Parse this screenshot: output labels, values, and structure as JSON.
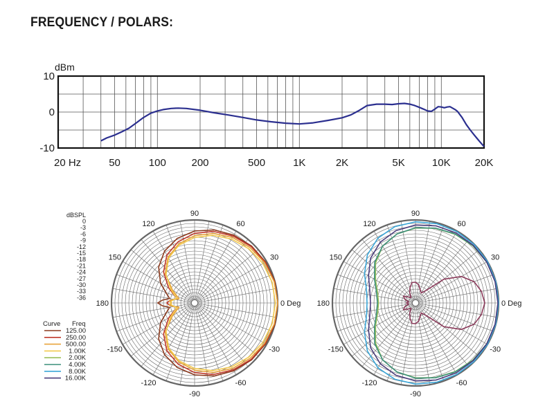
{
  "title": "FREQUENCY / POLARS:",
  "colors": {
    "freq_curve": "#2b2f8f",
    "grid": "#555555",
    "frame": "#111111"
  },
  "chart_data": [
    {
      "type": "line",
      "xlabel": "",
      "ylabel": "dBm",
      "xscale": "log",
      "xlim": [
        20,
        20000
      ],
      "ylim": [
        -10,
        10
      ],
      "x_ticks": [
        {
          "value": 20,
          "label": "20  Hz"
        },
        {
          "value": 50,
          "label": "50"
        },
        {
          "value": 100,
          "label": "100"
        },
        {
          "value": 200,
          "label": "200"
        },
        {
          "value": 500,
          "label": "500"
        },
        {
          "value": 1000,
          "label": "1K"
        },
        {
          "value": 2000,
          "label": "2K"
        },
        {
          "value": 5000,
          "label": "5K"
        },
        {
          "value": 10000,
          "label": "10K"
        },
        {
          "value": 20000,
          "label": "20K"
        }
      ],
      "y_ticks": [
        {
          "value": 10,
          "label": "10"
        },
        {
          "value": 0,
          "label": "0"
        },
        {
          "value": -10,
          "label": "-10"
        }
      ],
      "grid": true,
      "series": [
        {
          "name": "",
          "x": [
            40,
            44,
            50,
            56,
            63,
            70,
            80,
            90,
            100,
            110,
            125,
            140,
            160,
            200,
            250,
            315,
            400,
            500,
            630,
            800,
            1000,
            1250,
            1600,
            2000,
            2300,
            2600,
            3000,
            3500,
            4000,
            4500,
            5000,
            5500,
            6000,
            6500,
            7000,
            7500,
            8000,
            8500,
            9000,
            9500,
            10000,
            10500,
            11000,
            11500,
            12000,
            12500,
            13000,
            14000,
            15000,
            16000,
            17000,
            18000,
            19000,
            20000
          ],
          "y": [
            -8,
            -7.2,
            -6.4,
            -5.5,
            -4.5,
            -3.2,
            -1.5,
            -0.3,
            0.3,
            0.7,
            1.0,
            1.1,
            1.0,
            0.5,
            -0.2,
            -0.8,
            -1.5,
            -2.2,
            -2.7,
            -3.1,
            -3.3,
            -3.0,
            -2.3,
            -1.6,
            -0.8,
            0.3,
            1.8,
            2.2,
            2.2,
            2.1,
            2.3,
            2.4,
            2.2,
            1.8,
            1.3,
            0.8,
            0.3,
            0.2,
            0.8,
            1.5,
            1.4,
            1.2,
            1.4,
            1.5,
            1.1,
            0.7,
            0.2,
            -1.5,
            -3.5,
            -5.0,
            -6.3,
            -7.5,
            -8.6,
            -9.6
          ]
        }
      ]
    },
    {
      "type": "polar",
      "unit_label": "dBSPL",
      "r_ticks": [
        "0",
        "-3",
        "-6",
        "-9",
        "-12",
        "-15",
        "-18",
        "-21",
        "-24",
        "-27",
        "-30",
        "-33",
        "-36"
      ],
      "angle_labels": [
        {
          "deg": 0,
          "label": "0 Deg"
        },
        {
          "deg": 30,
          "label": "30"
        },
        {
          "deg": 60,
          "label": "60"
        },
        {
          "deg": 90,
          "label": "90"
        },
        {
          "deg": 120,
          "label": "120"
        },
        {
          "deg": 150,
          "label": "150"
        },
        {
          "deg": 180,
          "label": "180"
        },
        {
          "deg": -150,
          "label": "-150"
        },
        {
          "deg": -120,
          "label": "-120"
        },
        {
          "deg": -90,
          "label": "-90"
        },
        {
          "deg": -60,
          "label": "-60"
        },
        {
          "deg": -30,
          "label": "-30"
        }
      ],
      "legend": {
        "header_curve": "Curve",
        "header_freq": "Freq",
        "entries": [
          {
            "freq": "125.00",
            "color": "#8b3a1e"
          },
          {
            "freq": "250.00",
            "color": "#c0392b"
          },
          {
            "freq": "500.00",
            "color": "#e8a33a"
          },
          {
            "freq": "1.00K",
            "color": "#f2c94c"
          },
          {
            "freq": "2.00K",
            "color": "#9bbf5a"
          },
          {
            "freq": "4.00K",
            "color": "#3a8f7a"
          },
          {
            "freq": "8.00K",
            "color": "#3aa6d8"
          },
          {
            "freq": "16.00K",
            "color": "#4a3b7a"
          }
        ]
      },
      "series": [
        {
          "freq": "125.00",
          "color": "#8b3a1e",
          "angles": [
            0,
            15,
            30,
            45,
            60,
            75,
            90,
            105,
            120,
            135,
            150,
            165,
            170,
            175,
            180,
            -175,
            -170,
            -165,
            -150,
            -135,
            -120,
            -105,
            -90,
            -75,
            -60,
            -45,
            -30,
            -15
          ],
          "db": [
            0,
            0,
            -0.5,
            -1.1,
            -2.0,
            -3.2,
            -4.8,
            -7,
            -10,
            -14,
            -19,
            -24,
            -25,
            -22,
            -20,
            -22,
            -25,
            -24,
            -19,
            -14,
            -10,
            -7,
            -4.8,
            -3.2,
            -2,
            -1.1,
            -0.5,
            0
          ]
        },
        {
          "freq": "250.00",
          "color": "#c0392b",
          "angles": [
            0,
            15,
            30,
            45,
            60,
            75,
            90,
            105,
            120,
            135,
            150,
            165,
            170,
            175,
            180,
            -175,
            -170,
            -165,
            -150,
            -135,
            -120,
            -105,
            -90,
            -75,
            -60,
            -45,
            -30,
            -15
          ],
          "db": [
            0,
            -0.2,
            -0.7,
            -1.4,
            -2.5,
            -3.9,
            -5.8,
            -8.5,
            -12,
            -17,
            -23,
            -28,
            -27,
            -25,
            -24,
            -25,
            -27,
            -28,
            -23,
            -17,
            -12,
            -8.5,
            -5.8,
            -3.9,
            -2.5,
            -1.4,
            -0.7,
            -0.2
          ]
        },
        {
          "freq": "500.00",
          "color": "#e8a33a",
          "angles": [
            0,
            15,
            30,
            45,
            60,
            75,
            90,
            105,
            120,
            135,
            150,
            165,
            170,
            175,
            180,
            -175,
            -170,
            -165,
            -150,
            -135,
            -120,
            -105,
            -90,
            -75,
            -60,
            -45,
            -30,
            -15
          ],
          "db": [
            0,
            -0.3,
            -1.0,
            -2.0,
            -3.2,
            -4.8,
            -6.8,
            -9.5,
            -13,
            -18,
            -25,
            -29,
            -27,
            -25,
            -26,
            -25,
            -27,
            -29,
            -25,
            -18,
            -13,
            -9.5,
            -6.8,
            -4.8,
            -3.2,
            -2.0,
            -1.0,
            -0.3
          ]
        },
        {
          "freq": "1.00K",
          "color": "#f2c94c",
          "angles": [
            0,
            15,
            30,
            45,
            60,
            75,
            90,
            105,
            120,
            135,
            150,
            165,
            170,
            175,
            180,
            -175,
            -170,
            -165,
            -150,
            -135,
            -120,
            -105,
            -90,
            -75,
            -60,
            -45,
            -30,
            -15
          ],
          "db": [
            -1,
            -1.2,
            -1.8,
            -2.8,
            -4,
            -5.6,
            -7.6,
            -10,
            -13.5,
            -18.5,
            -24,
            -28,
            -27,
            -26,
            -25.5,
            -26,
            -27,
            -28,
            -24,
            -18.5,
            -13.5,
            -10,
            -7.6,
            -5.6,
            -4,
            -2.8,
            -1.8,
            -1.2
          ]
        },
        {
          "freq": "2.00K",
          "color": "#9bbf5a",
          "angles": [
            0,
            15,
            30,
            45,
            60,
            75,
            90,
            105,
            120,
            135,
            150,
            165,
            180,
            -165,
            -150,
            -135,
            -120,
            -105,
            -90,
            -75,
            -60,
            -45,
            -30,
            -15
          ],
          "db": [
            0,
            -0.1,
            -0.4,
            -0.9,
            -1.6,
            -2.5,
            -3.5,
            -5,
            -7.5,
            -11.5,
            -16,
            -19,
            -20,
            -19,
            -16,
            -11.5,
            -7.5,
            -5,
            -3.5,
            -2.5,
            -1.6,
            -0.9,
            -0.4,
            -0.1
          ]
        },
        {
          "freq": "4.00K",
          "color": "#3a8f7a",
          "angles": [
            0,
            15,
            30,
            45,
            60,
            75,
            90,
            105,
            120,
            135,
            150,
            165,
            180,
            -165,
            -150,
            -135,
            -120,
            -105,
            -90,
            -75,
            -60,
            -45,
            -30,
            -15
          ],
          "db": [
            0,
            -0.1,
            -0.4,
            -0.8,
            -1.5,
            -2.4,
            -3.4,
            -5,
            -7.5,
            -11,
            -15.5,
            -18.5,
            -19.5,
            -18.5,
            -15.5,
            -11,
            -7.5,
            -5,
            -3.4,
            -2.4,
            -1.5,
            -0.8,
            -0.4,
            -0.1
          ]
        },
        {
          "freq": "8.00K",
          "color": "#3aa6d8",
          "angles": [
            0,
            15,
            30,
            45,
            60,
            75,
            90,
            105,
            120,
            135,
            150,
            165,
            180,
            -165,
            -150,
            -135,
            -120,
            -105,
            -90,
            -75,
            -60,
            -45,
            -30,
            -15
          ],
          "db": [
            0,
            0,
            0,
            -0.1,
            -0.2,
            -0.4,
            -0.8,
            -1.7,
            -3.5,
            -6.5,
            -10.5,
            -14,
            -15,
            -14,
            -10.5,
            -6.5,
            -3.5,
            -1.7,
            -0.8,
            -0.4,
            -0.2,
            -0.1,
            0,
            0
          ]
        },
        {
          "freq": "16.00K",
          "color": "#4a3b7a",
          "angles": [
            0,
            15,
            30,
            45,
            60,
            75,
            90,
            105,
            120,
            135,
            150,
            165,
            180,
            -165,
            -150,
            -135,
            -120,
            -105,
            -90,
            -75,
            -60,
            -45,
            -30,
            -15
          ],
          "db": [
            -0.3,
            -0.3,
            -0.4,
            -0.6,
            -0.9,
            -1.4,
            -2.2,
            -3.5,
            -5.5,
            -8.5,
            -12.5,
            -15.5,
            -16.5,
            -15.5,
            -12.5,
            -8.5,
            -5.5,
            -3.5,
            -2.2,
            -1.4,
            -0.9,
            -0.6,
            -0.4,
            -0.3
          ]
        },
        {
          "freq": "",
          "color": "#8b3a5a",
          "angles": [
            0,
            10,
            20,
            30,
            40,
            50,
            60,
            70,
            80,
            90,
            100,
            110,
            120,
            130,
            140,
            150,
            160,
            170,
            180,
            -170,
            -160,
            -150,
            -140,
            -130,
            -120,
            -110,
            -100,
            -90,
            -80,
            -70,
            -60,
            -50,
            -40,
            -30,
            -20,
            -10
          ],
          "db": [
            -6,
            -7,
            -9,
            -13,
            -20,
            -29,
            -31,
            -30,
            -28,
            -27,
            -27,
            -29,
            -31,
            -33,
            -32,
            -30,
            -31,
            -33,
            -32,
            -33,
            -31,
            -30,
            -32,
            -33,
            -31,
            -29,
            -27,
            -27,
            -28,
            -30,
            -31,
            -29,
            -20,
            -13,
            -9,
            -7
          ]
        }
      ]
    }
  ]
}
